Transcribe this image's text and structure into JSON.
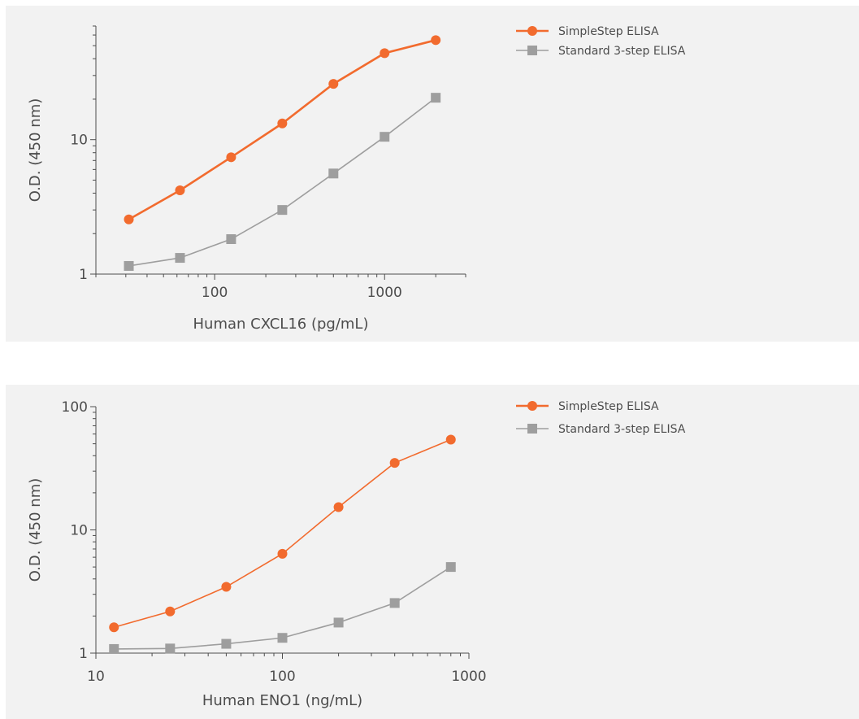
{
  "colors": {
    "background": "#f2f2f2",
    "axis": "#4d4d4d",
    "series_orange": "#f26b2e",
    "series_gray": "#9e9e9e"
  },
  "chart_data": [
    {
      "type": "line",
      "xlabel": "Human CXCL16 (pg/mL)",
      "ylabel": "O.D. (450 nm)",
      "x_scale": "log",
      "y_scale": "log",
      "xlim": [
        20,
        3000
      ],
      "ylim": [
        1,
        70
      ],
      "x_tick_labels": [
        "100",
        "1000"
      ],
      "y_tick_labels": [
        "1",
        "10"
      ],
      "grid": false,
      "legend_position": "top-right",
      "series": [
        {
          "name": "SimpleStep ELISA",
          "marker": "circle",
          "color": "#f26b2e",
          "x": [
            31.25,
            62.5,
            125,
            250,
            500,
            1000,
            2000
          ],
          "y": [
            2.55,
            4.2,
            7.4,
            13.2,
            26,
            44,
            55
          ]
        },
        {
          "name": "Standard 3-step ELISA",
          "marker": "square",
          "color": "#9e9e9e",
          "x": [
            31.25,
            62.5,
            125,
            250,
            500,
            1000,
            2000
          ],
          "y": [
            1.15,
            1.32,
            1.82,
            3.0,
            5.6,
            10.5,
            20.5
          ]
        }
      ]
    },
    {
      "type": "line",
      "xlabel": "Human ENO1 (ng/mL)",
      "ylabel": "O.D. (450 nm)",
      "x_scale": "log",
      "y_scale": "log",
      "xlim": [
        10,
        1000
      ],
      "ylim": [
        1,
        100
      ],
      "x_tick_labels": [
        "10",
        "100",
        "1000"
      ],
      "y_tick_labels": [
        "1",
        "10",
        "100"
      ],
      "grid": false,
      "legend_position": "top-right",
      "series": [
        {
          "name": "SimpleStep ELISA",
          "marker": "circle",
          "color": "#f26b2e",
          "x": [
            12.5,
            25,
            50,
            100,
            200,
            400,
            800
          ],
          "y": [
            1.62,
            2.18,
            3.45,
            6.4,
            15.3,
            35,
            54
          ]
        },
        {
          "name": "Standard 3-step ELISA",
          "marker": "square",
          "color": "#9e9e9e",
          "x": [
            12.5,
            25,
            50,
            100,
            200,
            400,
            800
          ],
          "y": [
            1.08,
            1.09,
            1.19,
            1.33,
            1.77,
            2.55,
            5.0
          ]
        }
      ]
    }
  ]
}
